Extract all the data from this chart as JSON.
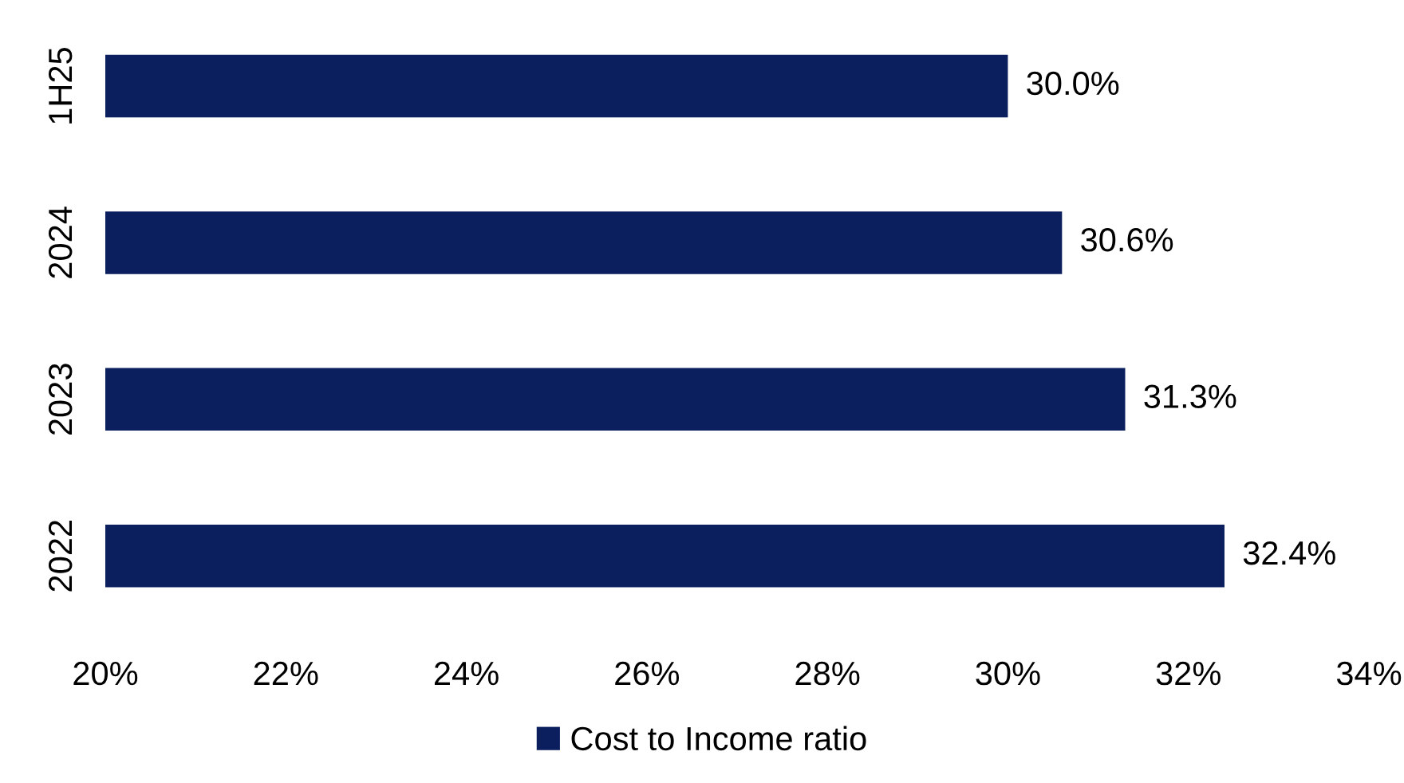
{
  "chart_data": {
    "type": "bar",
    "orientation": "horizontal",
    "categories": [
      "1H25",
      "2024",
      "2023",
      "2022"
    ],
    "series": [
      {
        "name": "Cost to Income ratio",
        "color": "#0b1f5e",
        "values": [
          30.0,
          30.6,
          31.3,
          32.4
        ],
        "value_labels": [
          "30.0%",
          "30.6%",
          "31.3%",
          "32.4%"
        ]
      }
    ],
    "xlim": [
      20,
      34
    ],
    "xticks": [
      {
        "value": 20,
        "label": "20%"
      },
      {
        "value": 22,
        "label": "22%"
      },
      {
        "value": 24,
        "label": "24%"
      },
      {
        "value": 26,
        "label": "26%"
      },
      {
        "value": 28,
        "label": "28%"
      },
      {
        "value": 30,
        "label": "30%"
      },
      {
        "value": 32,
        "label": "32%"
      },
      {
        "value": 34,
        "label": "34%"
      }
    ],
    "grid": false,
    "legend": "bottom"
  }
}
